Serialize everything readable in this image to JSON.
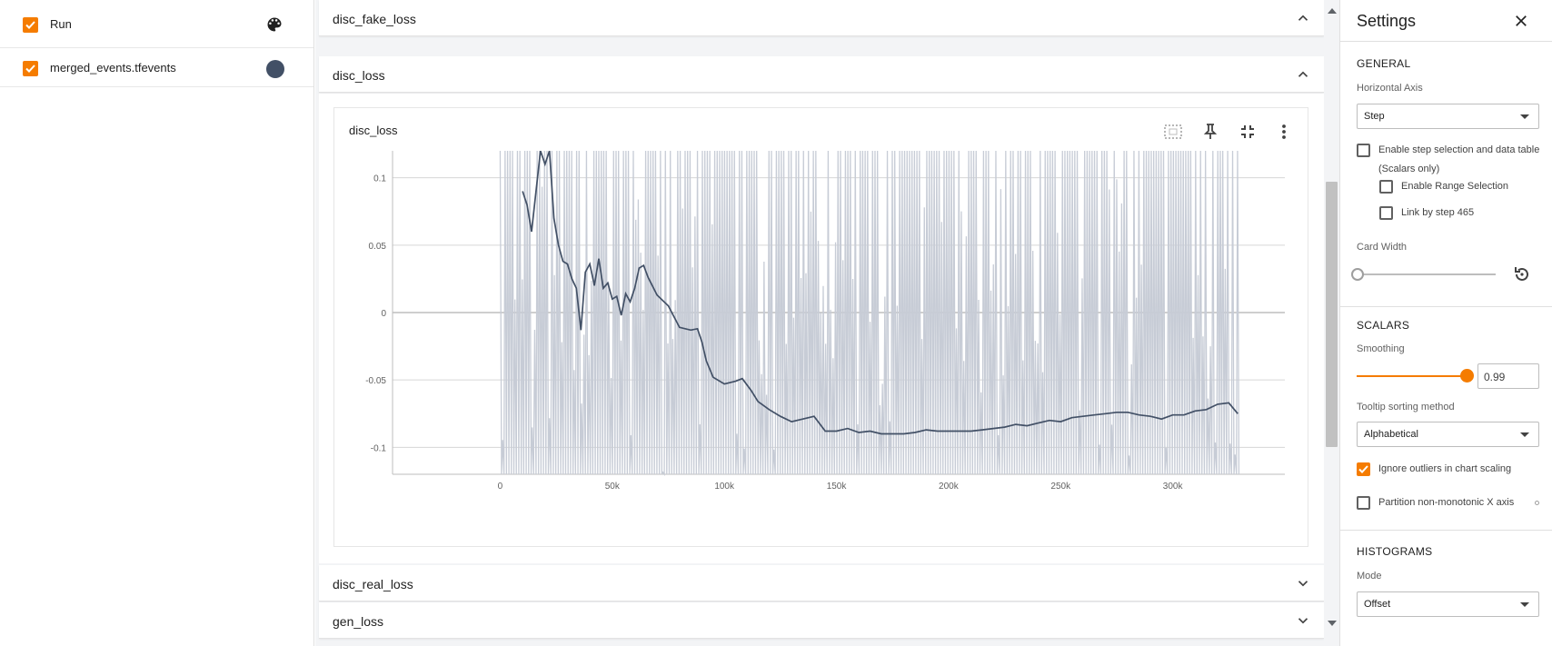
{
  "runs": {
    "header_label": "Run",
    "items": [
      {
        "label": "merged_events.tfevents",
        "color": "#425066",
        "checked": true
      }
    ]
  },
  "groups": {
    "disc_fake_loss": "disc_fake_loss",
    "disc_loss": "disc_loss",
    "disc_real_loss": "disc_real_loss",
    "gen_loss": "gen_loss"
  },
  "card": {
    "title": "disc_loss",
    "tools": [
      "fit-domain-icon",
      "pin-icon",
      "collapse-icon",
      "more-vert-icon"
    ]
  },
  "chart_data": {
    "type": "line",
    "title": "disc_loss",
    "xlabel": "",
    "ylabel": "",
    "x_ticks": [
      "0",
      "50k",
      "100k",
      "150k",
      "200k",
      "250k",
      "300k"
    ],
    "y_ticks": [
      "0.1",
      "0.05",
      "0",
      "-0.05",
      "-0.1"
    ],
    "xlim": [
      -48000,
      350000
    ],
    "ylim": [
      -0.12,
      0.12
    ],
    "grid": true,
    "series": [
      {
        "name": "merged_events.tfevents",
        "color": "#425066",
        "smoothing": 0.99,
        "x": [
          10000,
          12000,
          14000,
          16000,
          18000,
          20000,
          22000,
          24000,
          26000,
          28000,
          30000,
          32000,
          34000,
          36000,
          38000,
          40000,
          42000,
          44000,
          46000,
          48000,
          50000,
          52000,
          54000,
          56000,
          58000,
          60000,
          62000,
          64000,
          66000,
          70000,
          75000,
          80000,
          85000,
          88000,
          90000,
          92000,
          95000,
          100000,
          105000,
          108000,
          112000,
          115000,
          120000,
          125000,
          130000,
          135000,
          140000,
          145000,
          150000,
          155000,
          160000,
          165000,
          170000,
          175000,
          180000,
          185000,
          190000,
          195000,
          200000,
          205000,
          210000,
          215000,
          220000,
          225000,
          230000,
          235000,
          240000,
          245000,
          250000,
          255000,
          260000,
          265000,
          270000,
          275000,
          280000,
          285000,
          290000,
          295000,
          300000,
          305000,
          310000,
          315000,
          320000,
          325000,
          329000
        ],
        "y": [
          0.09,
          0.08,
          0.06,
          0.09,
          0.12,
          0.11,
          0.12,
          0.07,
          0.05,
          0.038,
          0.036,
          0.025,
          0.018,
          -0.013,
          0.03,
          0.036,
          0.02,
          0.04,
          0.018,
          0.022,
          0.01,
          0.012,
          -0.002,
          0.014,
          0.008,
          0.018,
          0.033,
          0.035,
          0.026,
          0.013,
          0.005,
          -0.011,
          -0.013,
          -0.012,
          -0.022,
          -0.036,
          -0.048,
          -0.053,
          -0.051,
          -0.049,
          -0.058,
          -0.066,
          -0.072,
          -0.077,
          -0.081,
          -0.079,
          -0.077,
          -0.088,
          -0.088,
          -0.086,
          -0.089,
          -0.088,
          -0.09,
          -0.09,
          -0.09,
          -0.089,
          -0.087,
          -0.088,
          -0.088,
          -0.088,
          -0.088,
          -0.087,
          -0.086,
          -0.085,
          -0.083,
          -0.084,
          -0.082,
          -0.08,
          -0.081,
          -0.078,
          -0.077,
          -0.076,
          -0.075,
          -0.074,
          -0.074,
          -0.076,
          -0.077,
          -0.079,
          -0.076,
          -0.076,
          -0.073,
          -0.072,
          -0.068,
          -0.067,
          -0.075
        ]
      }
    ]
  },
  "settings": {
    "title": "Settings",
    "general": {
      "title": "GENERAL",
      "horizontal_axis_label": "Horizontal Axis",
      "horizontal_axis_value": "Step",
      "step_selection_label": "Enable step selection and data table",
      "scalars_only": "(Scalars only)",
      "range_selection_label": "Enable Range Selection",
      "link_by_step_label": "Link by step 465",
      "card_width_label": "Card Width"
    },
    "scalars": {
      "title": "SCALARS",
      "smoothing_label": "Smoothing",
      "smoothing_value": "0.99",
      "tooltip_label": "Tooltip sorting method",
      "tooltip_value": "Alphabetical",
      "ignore_outliers_label": "Ignore outliers in chart scaling",
      "partition_label": "Partition non-monotonic X axis"
    },
    "histograms": {
      "title": "HISTOGRAMS",
      "mode_label": "Mode",
      "mode_value": "Offset"
    },
    "accent_color": "#f57c00"
  }
}
